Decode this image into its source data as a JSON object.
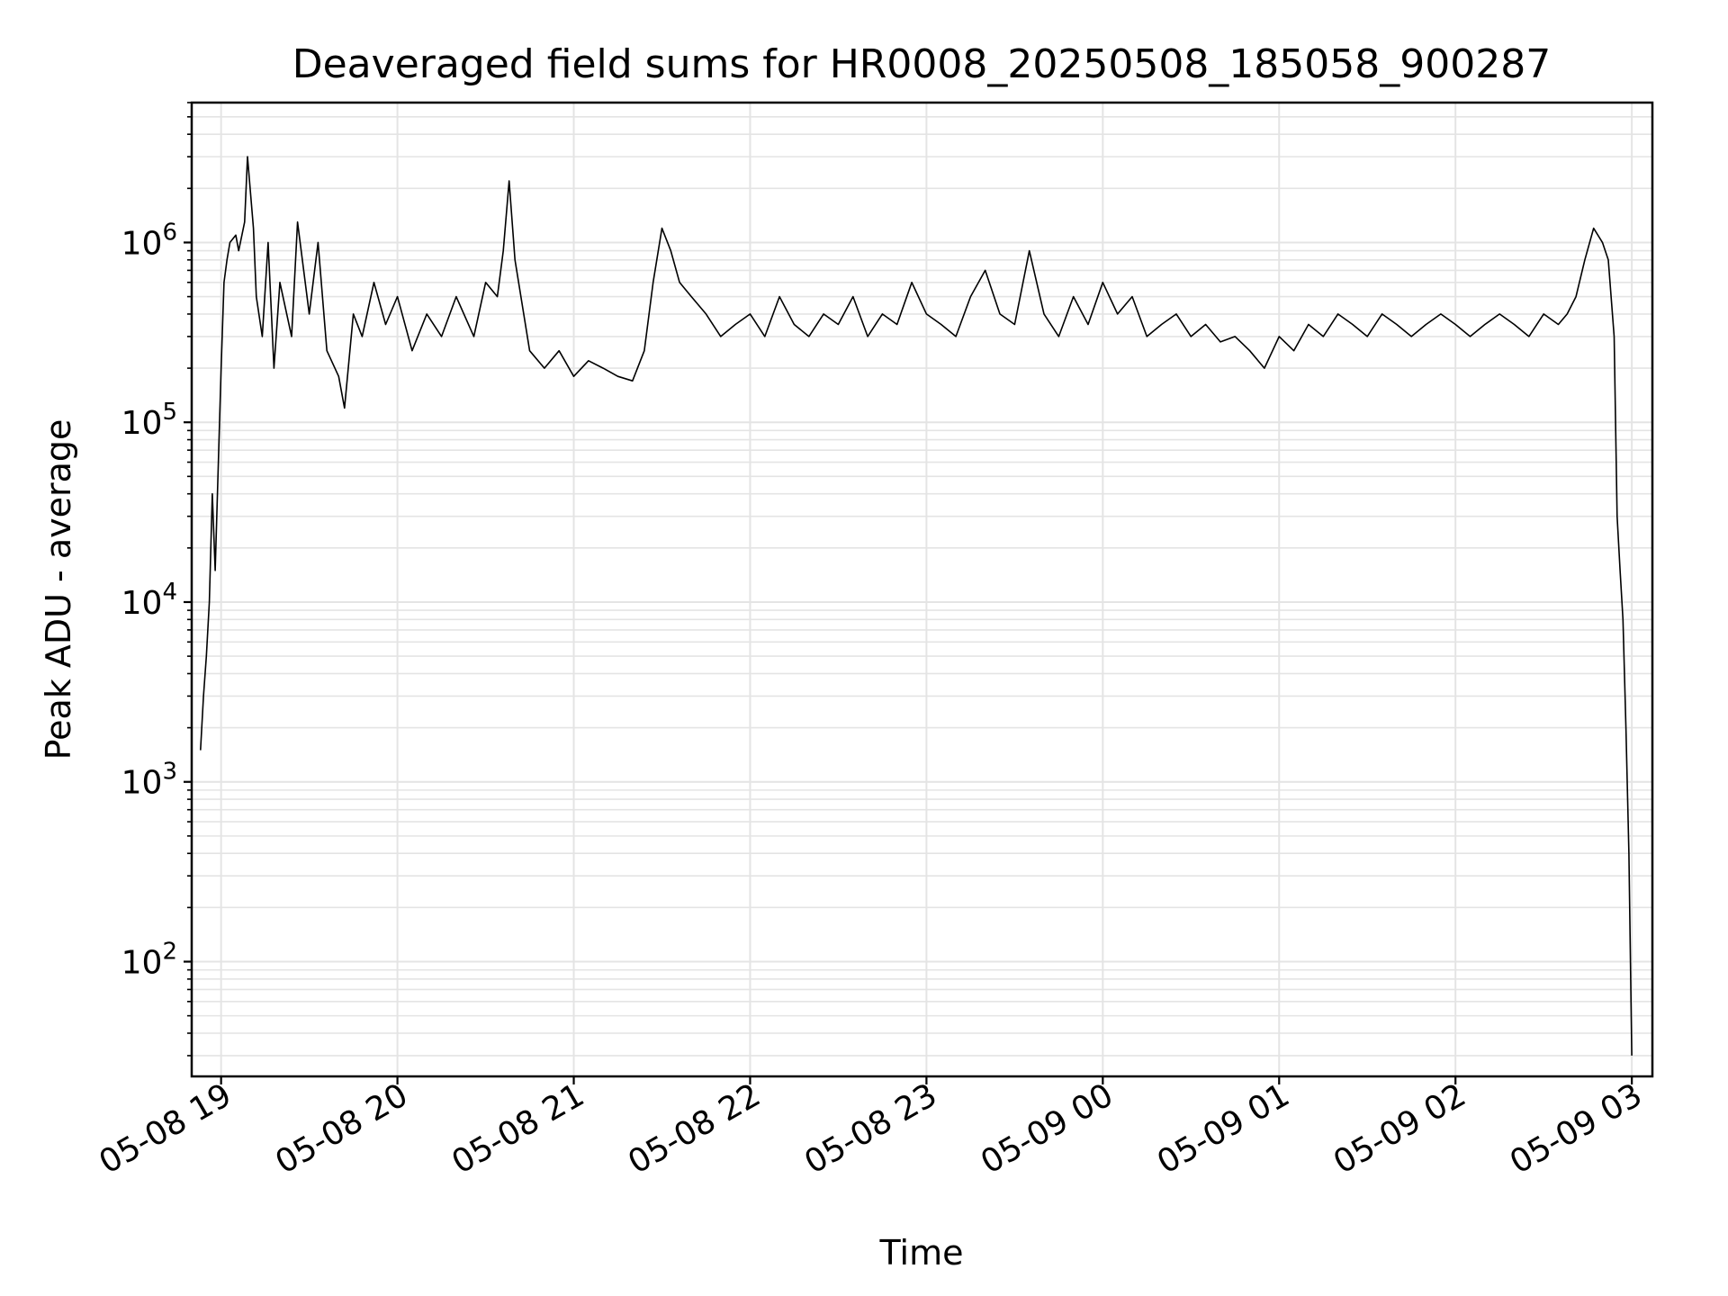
{
  "colors": {
    "line": "#000000",
    "grid": "#e4e4e4",
    "axis": "#000000",
    "background": "#ffffff"
  },
  "chart_data": {
    "type": "line",
    "title": "Deaveraged field sums for HR0008_20250508_185058_900287",
    "xlabel": "Time",
    "ylabel": "Peak ADU - average",
    "y_scale": "log",
    "ylim": [
      23,
      6000000
    ],
    "xlim": [
      "2025-05-08 18:50",
      "2025-05-09 03:07"
    ],
    "grid": true,
    "legend": "none",
    "x_ticks": [
      {
        "label": "05-08 19",
        "value": "2025-05-08 19:00"
      },
      {
        "label": "05-08 20",
        "value": "2025-05-08 20:00"
      },
      {
        "label": "05-08 21",
        "value": "2025-05-08 21:00"
      },
      {
        "label": "05-08 22",
        "value": "2025-05-08 22:00"
      },
      {
        "label": "05-08 23",
        "value": "2025-05-08 23:00"
      },
      {
        "label": "05-09 00",
        "value": "2025-05-09 00:00"
      },
      {
        "label": "05-09 01",
        "value": "2025-05-09 01:00"
      },
      {
        "label": "05-09 02",
        "value": "2025-05-09 02:00"
      },
      {
        "label": "05-09 03",
        "value": "2025-05-09 03:00"
      }
    ],
    "y_ticks": [
      {
        "base": "10",
        "exp": "2",
        "value": 100
      },
      {
        "base": "10",
        "exp": "3",
        "value": 1000
      },
      {
        "base": "10",
        "exp": "4",
        "value": 10000
      },
      {
        "base": "10",
        "exp": "5",
        "value": 100000
      },
      {
        "base": "10",
        "exp": "6",
        "value": 1000000
      }
    ],
    "series": [
      {
        "x": [
          "2025-05-08 18:53",
          "2025-05-08 18:54",
          "2025-05-08 18:55",
          "2025-05-08 18:56",
          "2025-05-08 18:57",
          "2025-05-08 18:58",
          "2025-05-08 19:00",
          "2025-05-08 19:01",
          "2025-05-08 19:02",
          "2025-05-08 19:03",
          "2025-05-08 19:05",
          "2025-05-08 19:06",
          "2025-05-08 19:08",
          "2025-05-08 19:09",
          "2025-05-08 19:11",
          "2025-05-08 19:12",
          "2025-05-08 19:14",
          "2025-05-08 19:16",
          "2025-05-08 19:18",
          "2025-05-08 19:20",
          "2025-05-08 19:24",
          "2025-05-08 19:26",
          "2025-05-08 19:30",
          "2025-05-08 19:33",
          "2025-05-08 19:36",
          "2025-05-08 19:40",
          "2025-05-08 19:42",
          "2025-05-08 19:45",
          "2025-05-08 19:48",
          "2025-05-08 19:52",
          "2025-05-08 19:56",
          "2025-05-08 20:00",
          "2025-05-08 20:05",
          "2025-05-08 20:10",
          "2025-05-08 20:15",
          "2025-05-08 20:20",
          "2025-05-08 20:26",
          "2025-05-08 20:30",
          "2025-05-08 20:34",
          "2025-05-08 20:36",
          "2025-05-08 20:38",
          "2025-05-08 20:40",
          "2025-05-08 20:45",
          "2025-05-08 20:50",
          "2025-05-08 20:55",
          "2025-05-08 21:00",
          "2025-05-08 21:05",
          "2025-05-08 21:10",
          "2025-05-08 21:15",
          "2025-05-08 21:20",
          "2025-05-08 21:24",
          "2025-05-08 21:27",
          "2025-05-08 21:30",
          "2025-05-08 21:33",
          "2025-05-08 21:36",
          "2025-05-08 21:40",
          "2025-05-08 21:45",
          "2025-05-08 21:50",
          "2025-05-08 21:55",
          "2025-05-08 22:00",
          "2025-05-08 22:05",
          "2025-05-08 22:10",
          "2025-05-08 22:15",
          "2025-05-08 22:20",
          "2025-05-08 22:25",
          "2025-05-08 22:30",
          "2025-05-08 22:35",
          "2025-05-08 22:40",
          "2025-05-08 22:45",
          "2025-05-08 22:50",
          "2025-05-08 22:55",
          "2025-05-08 23:00",
          "2025-05-08 23:05",
          "2025-05-08 23:10",
          "2025-05-08 23:15",
          "2025-05-08 23:20",
          "2025-05-08 23:25",
          "2025-05-08 23:30",
          "2025-05-08 23:35",
          "2025-05-08 23:40",
          "2025-05-08 23:45",
          "2025-05-08 23:50",
          "2025-05-08 23:55",
          "2025-05-09 00:00",
          "2025-05-09 00:05",
          "2025-05-09 00:10",
          "2025-05-09 00:15",
          "2025-05-09 00:20",
          "2025-05-09 00:25",
          "2025-05-09 00:30",
          "2025-05-09 00:35",
          "2025-05-09 00:40",
          "2025-05-09 00:45",
          "2025-05-09 00:50",
          "2025-05-09 00:55",
          "2025-05-09 01:00",
          "2025-05-09 01:05",
          "2025-05-09 01:10",
          "2025-05-09 01:15",
          "2025-05-09 01:20",
          "2025-05-09 01:25",
          "2025-05-09 01:30",
          "2025-05-09 01:35",
          "2025-05-09 01:40",
          "2025-05-09 01:45",
          "2025-05-09 01:50",
          "2025-05-09 01:55",
          "2025-05-09 02:00",
          "2025-05-09 02:05",
          "2025-05-09 02:10",
          "2025-05-09 02:15",
          "2025-05-09 02:20",
          "2025-05-09 02:25",
          "2025-05-09 02:30",
          "2025-05-09 02:35",
          "2025-05-09 02:38",
          "2025-05-09 02:41",
          "2025-05-09 02:44",
          "2025-05-09 02:47",
          "2025-05-09 02:50",
          "2025-05-09 02:52",
          "2025-05-09 02:54",
          "2025-05-09 02:55",
          "2025-05-09 02:56",
          "2025-05-09 02:57",
          "2025-05-09 02:58",
          "2025-05-09 02:59",
          "2025-05-09 03:00"
        ],
        "y": [
          1500,
          3000,
          5000,
          10000,
          40000,
          15000,
          200000,
          600000,
          800000,
          1000000,
          1100000,
          900000,
          1300000,
          3000000,
          1200000,
          500000,
          300000,
          1000000,
          200000,
          600000,
          300000,
          1300000,
          400000,
          1000000,
          250000,
          180000,
          120000,
          400000,
          300000,
          600000,
          350000,
          500000,
          250000,
          400000,
          300000,
          500000,
          300000,
          600000,
          500000,
          900000,
          2200000,
          800000,
          250000,
          200000,
          250000,
          180000,
          220000,
          200000,
          180000,
          170000,
          250000,
          600000,
          1200000,
          900000,
          600000,
          500000,
          400000,
          300000,
          350000,
          400000,
          300000,
          500000,
          350000,
          300000,
          400000,
          350000,
          500000,
          300000,
          400000,
          350000,
          600000,
          400000,
          350000,
          300000,
          500000,
          700000,
          400000,
          350000,
          900000,
          400000,
          300000,
          500000,
          350000,
          600000,
          400000,
          500000,
          300000,
          350000,
          400000,
          300000,
          350000,
          280000,
          300000,
          250000,
          200000,
          300000,
          250000,
          350000,
          300000,
          400000,
          350000,
          300000,
          400000,
          350000,
          300000,
          350000,
          400000,
          350000,
          300000,
          350000,
          400000,
          350000,
          300000,
          400000,
          350000,
          400000,
          500000,
          800000,
          1200000,
          1000000,
          800000,
          300000,
          30000,
          15000,
          8000,
          2000,
          400,
          30
        ]
      }
    ]
  }
}
